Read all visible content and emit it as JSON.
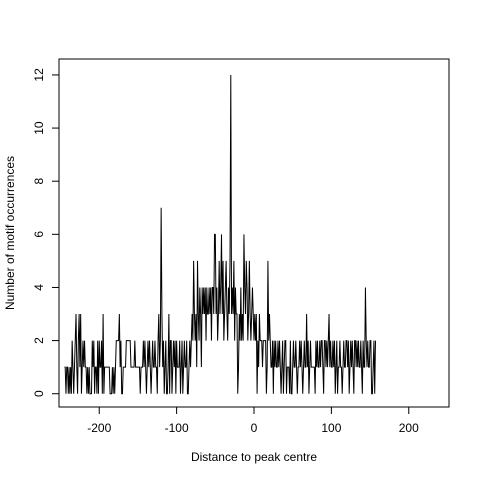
{
  "chart_data": {
    "type": "line",
    "xlabel": "Distance to peak centre",
    "ylabel": "Number of motif occurrences",
    "xlim": [
      -252,
      252
    ],
    "ylim": [
      -0.5,
      12.6
    ],
    "xticks": [
      -200,
      -100,
      0,
      100,
      200
    ],
    "xtick_labels": [
      "-200",
      "-100",
      "0",
      "100",
      "200"
    ],
    "yticks": [
      0,
      2,
      4,
      6,
      8,
      10,
      12
    ],
    "ytick_labels": [
      "0",
      "2",
      "4",
      "6",
      "8",
      "10",
      "12"
    ],
    "grid": false,
    "legend": "none",
    "line_color": "#000000",
    "series": [
      {
        "x_start": -245,
        "x_step": 1,
        "values": [
          1,
          1,
          0,
          1,
          1,
          0,
          1,
          0,
          1,
          0,
          2,
          1,
          0,
          1,
          2,
          3,
          1,
          0,
          2,
          3,
          1,
          3,
          0,
          1,
          2,
          1,
          2,
          1,
          1,
          0,
          1,
          0,
          1,
          0,
          0,
          0,
          2,
          1,
          2,
          0,
          1,
          1,
          0,
          2,
          0,
          2,
          1,
          1,
          2,
          0,
          3,
          0,
          1,
          1,
          1,
          1,
          1,
          1,
          1,
          0,
          0,
          0,
          1,
          0,
          1,
          0,
          1,
          2,
          2,
          2,
          2,
          3,
          1,
          2,
          0,
          0,
          1,
          1,
          1,
          1,
          2,
          2,
          2,
          2,
          2,
          2,
          1,
          1,
          1,
          1,
          1,
          2,
          1,
          1,
          1,
          1,
          1,
          1,
          0,
          1,
          1,
          1,
          2,
          1,
          2,
          1,
          0,
          1,
          2,
          1,
          2,
          1,
          0,
          1,
          2,
          1,
          1,
          2,
          1,
          1,
          0,
          2,
          3,
          1,
          2,
          7,
          3,
          1,
          2,
          0,
          1,
          2,
          0,
          0,
          1,
          3,
          0,
          2,
          2,
          0,
          1,
          2,
          1,
          2,
          0,
          2,
          1,
          1,
          1,
          2,
          0,
          1,
          2,
          0,
          1,
          2,
          1,
          1,
          2,
          0,
          0,
          1,
          2,
          1,
          2,
          3,
          2,
          5,
          3,
          2,
          3,
          1,
          5,
          3,
          2,
          4,
          3,
          1,
          4,
          3,
          4,
          3,
          4,
          2,
          4,
          3,
          3,
          4,
          3,
          4,
          2,
          4,
          4,
          3,
          6,
          6,
          3,
          4,
          2,
          3,
          5,
          3,
          4,
          6,
          3,
          5,
          2,
          3,
          4,
          5,
          3,
          2,
          4,
          3,
          5,
          12,
          3,
          4,
          3,
          5,
          2,
          4,
          3,
          3,
          0,
          1,
          3,
          2,
          4,
          2,
          3,
          2,
          6,
          4,
          3,
          5,
          4,
          2,
          3,
          5,
          3,
          2,
          3,
          4,
          3,
          2,
          3,
          2,
          3,
          0,
          2,
          1,
          3,
          2,
          2,
          2,
          1,
          2,
          2,
          2,
          2,
          0,
          1,
          5,
          2,
          3,
          2,
          1,
          1,
          2,
          0,
          2,
          1,
          2,
          1,
          1,
          2,
          1,
          2,
          1,
          0,
          1,
          2,
          0,
          1,
          2,
          2,
          0,
          1,
          1,
          1,
          0,
          2,
          0,
          0,
          1,
          2,
          1,
          1,
          2,
          1,
          0,
          1,
          1,
          2,
          1,
          2,
          1,
          0,
          1,
          2,
          1,
          1,
          3,
          1,
          2,
          0,
          1,
          2,
          1,
          1,
          1,
          1,
          1,
          0,
          2,
          1,
          2,
          1,
          1,
          2,
          1,
          2,
          2,
          1,
          0,
          2,
          2,
          1,
          2,
          1,
          2,
          3,
          1,
          2,
          1,
          1,
          2,
          1,
          2,
          0,
          1,
          2,
          0,
          1,
          1,
          2,
          1,
          1,
          0,
          1,
          2,
          1,
          1,
          2,
          2,
          1,
          2,
          0,
          1,
          2,
          1,
          2,
          1,
          0,
          2,
          2,
          1,
          2,
          1,
          2,
          1,
          1,
          2,
          1,
          0,
          2,
          1,
          1,
          4,
          2,
          1,
          2,
          1,
          1,
          2,
          2,
          0,
          0,
          1,
          2,
          0,
          2
        ]
      }
    ]
  }
}
